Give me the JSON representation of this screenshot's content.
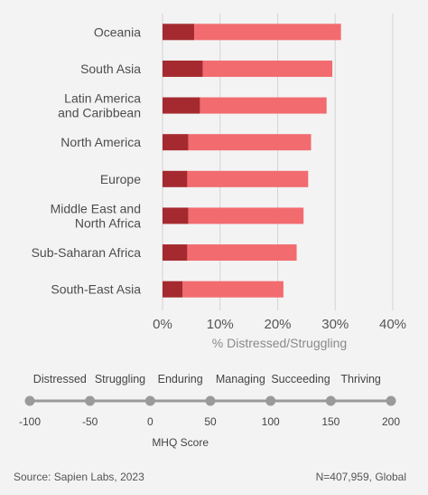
{
  "chart_data": {
    "type": "bar",
    "orientation": "horizontal",
    "stacked": true,
    "categories": [
      "Oceania",
      "South Asia",
      "Latin America\nand Caribbean",
      "North America",
      "Europe",
      "Middle East and\nNorth Africa",
      "Sub-Saharan Africa",
      "South-East Asia"
    ],
    "series": [
      {
        "name": "Distressed",
        "color": "#a52a2f",
        "values": [
          5.5,
          7,
          6.5,
          4.5,
          4.3,
          4.5,
          4.3,
          3.5
        ]
      },
      {
        "name": "Struggling",
        "color": "#f26b6f",
        "values": [
          25.5,
          22.5,
          22,
          21.3,
          21,
          20,
          19,
          17.5
        ]
      }
    ],
    "xlim": [
      0,
      40
    ],
    "xticks": [
      0,
      10,
      20,
      30,
      40
    ],
    "tick_suffix": "%",
    "xlabel": "% Distressed/Struggling",
    "grid": true
  },
  "mhq_scale": {
    "categories": [
      "Distressed",
      "Struggling",
      "Enduring",
      "Managing",
      "Succeeding",
      "Thriving"
    ],
    "ticks": [
      -100,
      -50,
      0,
      50,
      100,
      150,
      200
    ],
    "label": "MHQ Score",
    "color": "#9a9a9a"
  },
  "footer": {
    "source": "Source: Sapien Labs, 2023",
    "sample": "N=407,959, Global"
  }
}
